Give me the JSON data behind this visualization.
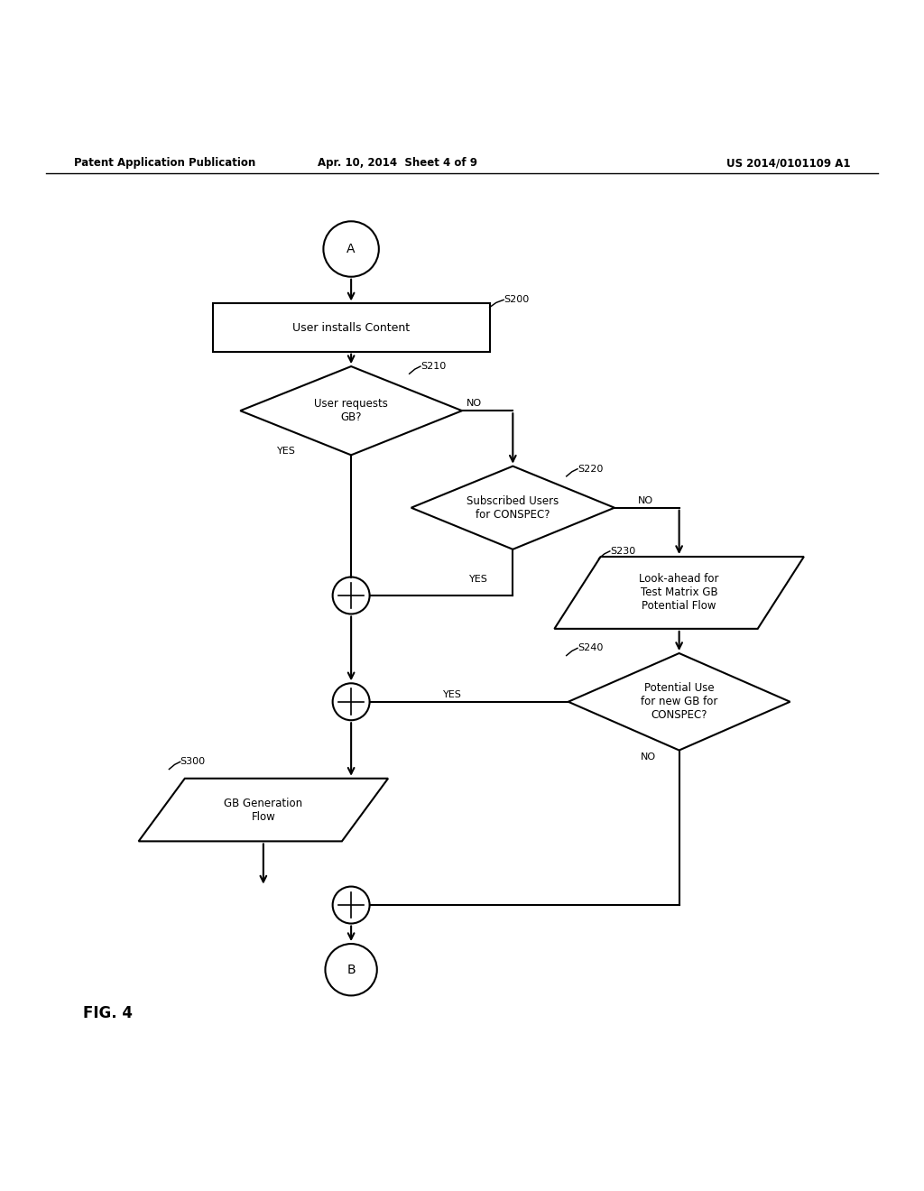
{
  "title_left": "Patent Application Publication",
  "title_center": "Apr. 10, 2014  Sheet 4 of 9",
  "title_right": "US 2014/0101109 A1",
  "fig_label": "FIG. 4",
  "background": "#ffffff",
  "lw": 1.5,
  "fs": 9,
  "header_fs": 8.5,
  "fig_label_fs": 12
}
